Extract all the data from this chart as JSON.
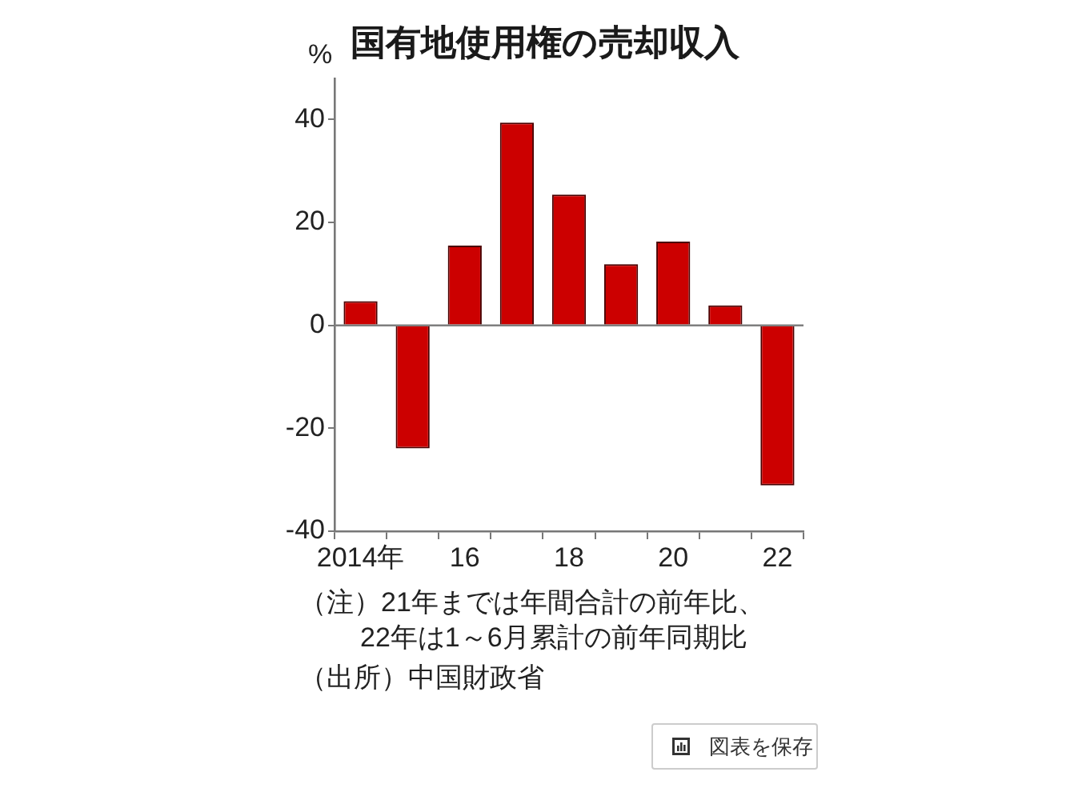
{
  "chart_data": {
    "type": "bar",
    "title": "国有地使用権の売却収入",
    "ylabel": "%",
    "categories": [
      "2014年",
      null,
      "16",
      null,
      "18",
      null,
      "20",
      null,
      "22"
    ],
    "values": [
      4.7,
      -23.9,
      15.5,
      39.4,
      25.4,
      11.9,
      16.3,
      3.9,
      -31.1
    ],
    "color": "#cc0000",
    "ylim": [
      -40,
      48
    ],
    "yticks": [
      -40,
      -20,
      0,
      20,
      40
    ],
    "ref_lines": [
      {
        "axis": "y",
        "value": 0,
        "color": "#7f7f7f"
      }
    ],
    "annotations": [
      "（注）21年までは年間合計の前年比、\n22年は1～6月累計の前年同期比",
      "（出所）中国財政省",
      "図表を保存"
    ]
  }
}
